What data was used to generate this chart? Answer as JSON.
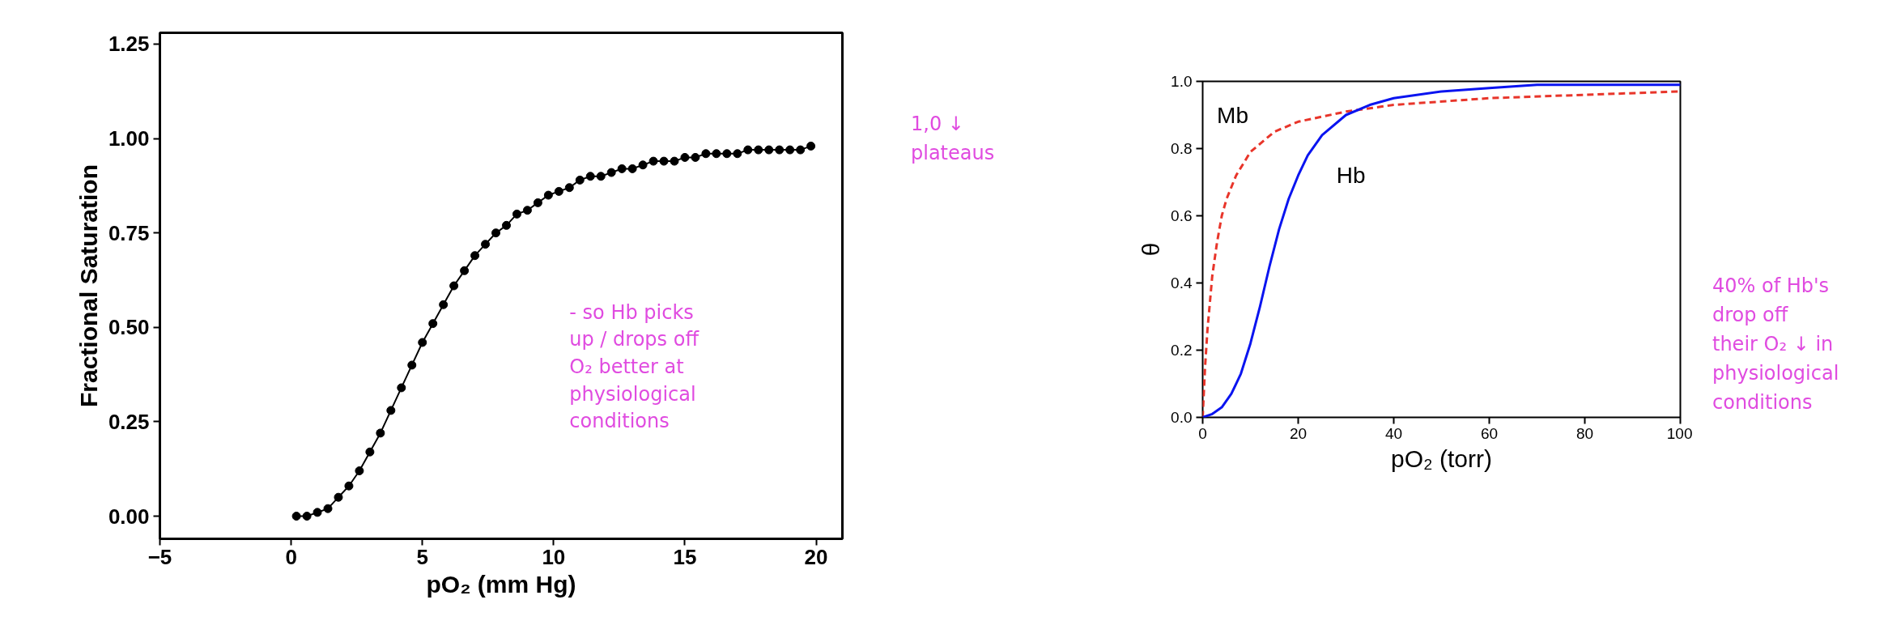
{
  "chart_data": [
    {
      "type": "line",
      "xlabel": "pO₂ (mm Hg)",
      "ylabel": "Fractional Saturation",
      "marker": "circle",
      "line_style": "solid",
      "grid": false,
      "x": [
        0.2,
        0.6,
        1.0,
        1.4,
        1.8,
        2.2,
        2.6,
        3.0,
        3.4,
        3.8,
        4.2,
        4.6,
        5.0,
        5.4,
        5.8,
        6.2,
        6.6,
        7.0,
        7.4,
        7.8,
        8.2,
        8.6,
        9.0,
        9.4,
        9.8,
        10.2,
        10.6,
        11.0,
        11.4,
        11.8,
        12.2,
        12.6,
        13.0,
        13.4,
        13.8,
        14.2,
        14.6,
        15.0,
        15.4,
        15.8,
        16.2,
        16.6,
        17.0,
        17.4,
        17.8,
        18.2,
        18.6,
        19.0,
        19.4,
        19.8
      ],
      "series": [
        {
          "color": "#000000",
          "values": [
            0.0,
            0.0,
            0.01,
            0.02,
            0.05,
            0.08,
            0.12,
            0.17,
            0.22,
            0.28,
            0.34,
            0.4,
            0.46,
            0.51,
            0.56,
            0.61,
            0.65,
            0.69,
            0.72,
            0.75,
            0.77,
            0.8,
            0.81,
            0.83,
            0.85,
            0.86,
            0.87,
            0.89,
            0.9,
            0.9,
            0.91,
            0.92,
            0.92,
            0.93,
            0.94,
            0.94,
            0.94,
            0.95,
            0.95,
            0.96,
            0.96,
            0.96,
            0.96,
            0.97,
            0.97,
            0.97,
            0.97,
            0.97,
            0.97,
            0.98
          ]
        }
      ],
      "xlim": [
        -5,
        21
      ],
      "ylim": [
        -0.06,
        1.28
      ],
      "xticks": [
        -5,
        0,
        5,
        10,
        15,
        20
      ],
      "yticks": [
        {
          "value": 0,
          "label": "0.00"
        },
        {
          "value": 0.25,
          "label": "0.25"
        },
        {
          "value": 0.5,
          "label": "0.50"
        },
        {
          "value": 0.75,
          "label": "0.75"
        },
        {
          "value": 1,
          "label": "1.00"
        },
        {
          "value": 1.25,
          "label": "1.25"
        }
      ],
      "annotations": [
        "- so Hb picks up / drops off O₂ better at physiological conditions",
        "1,0 ↓ plateaus"
      ]
    },
    {
      "type": "line",
      "xlabel": "pO₂ (torr)",
      "ylabel": "θ",
      "marker": "none",
      "grid": false,
      "series": [
        {
          "name": "Mb",
          "color": "#e8352a",
          "line_style": "dashed",
          "x": [
            0,
            0.5,
            1,
            2,
            3,
            4,
            5,
            7,
            10,
            15,
            20,
            30,
            40,
            60,
            80,
            100
          ],
          "values": [
            0,
            0.15,
            0.26,
            0.42,
            0.52,
            0.6,
            0.65,
            0.72,
            0.79,
            0.85,
            0.88,
            0.91,
            0.93,
            0.95,
            0.96,
            0.97
          ]
        },
        {
          "name": "Hb",
          "color": "#0a14f0",
          "line_style": "solid",
          "x": [
            0,
            2,
            4,
            6,
            8,
            10,
            12,
            14,
            16,
            18,
            20,
            22,
            25,
            30,
            35,
            40,
            50,
            60,
            70,
            80,
            100
          ],
          "values": [
            0,
            0.01,
            0.03,
            0.07,
            0.13,
            0.22,
            0.33,
            0.45,
            0.56,
            0.65,
            0.72,
            0.78,
            0.84,
            0.9,
            0.93,
            0.95,
            0.97,
            0.98,
            0.99,
            0.99,
            0.99
          ]
        }
      ],
      "xlim": [
        0,
        100
      ],
      "ylim": [
        0,
        1
      ],
      "xticks": [
        0,
        20,
        40,
        60,
        80,
        100
      ],
      "yticks": [
        {
          "value": 0,
          "label": "0.0"
        },
        {
          "value": 0.2,
          "label": "0.2"
        },
        {
          "value": 0.4,
          "label": "0.4"
        },
        {
          "value": 0.6,
          "label": "0.6"
        },
        {
          "value": 0.8,
          "label": "0.8"
        },
        {
          "value": 1,
          "label": "1.0"
        }
      ],
      "annotations": [
        "40% of Hb's drop off their O₂ ↓ in physiological conditions"
      ]
    }
  ]
}
